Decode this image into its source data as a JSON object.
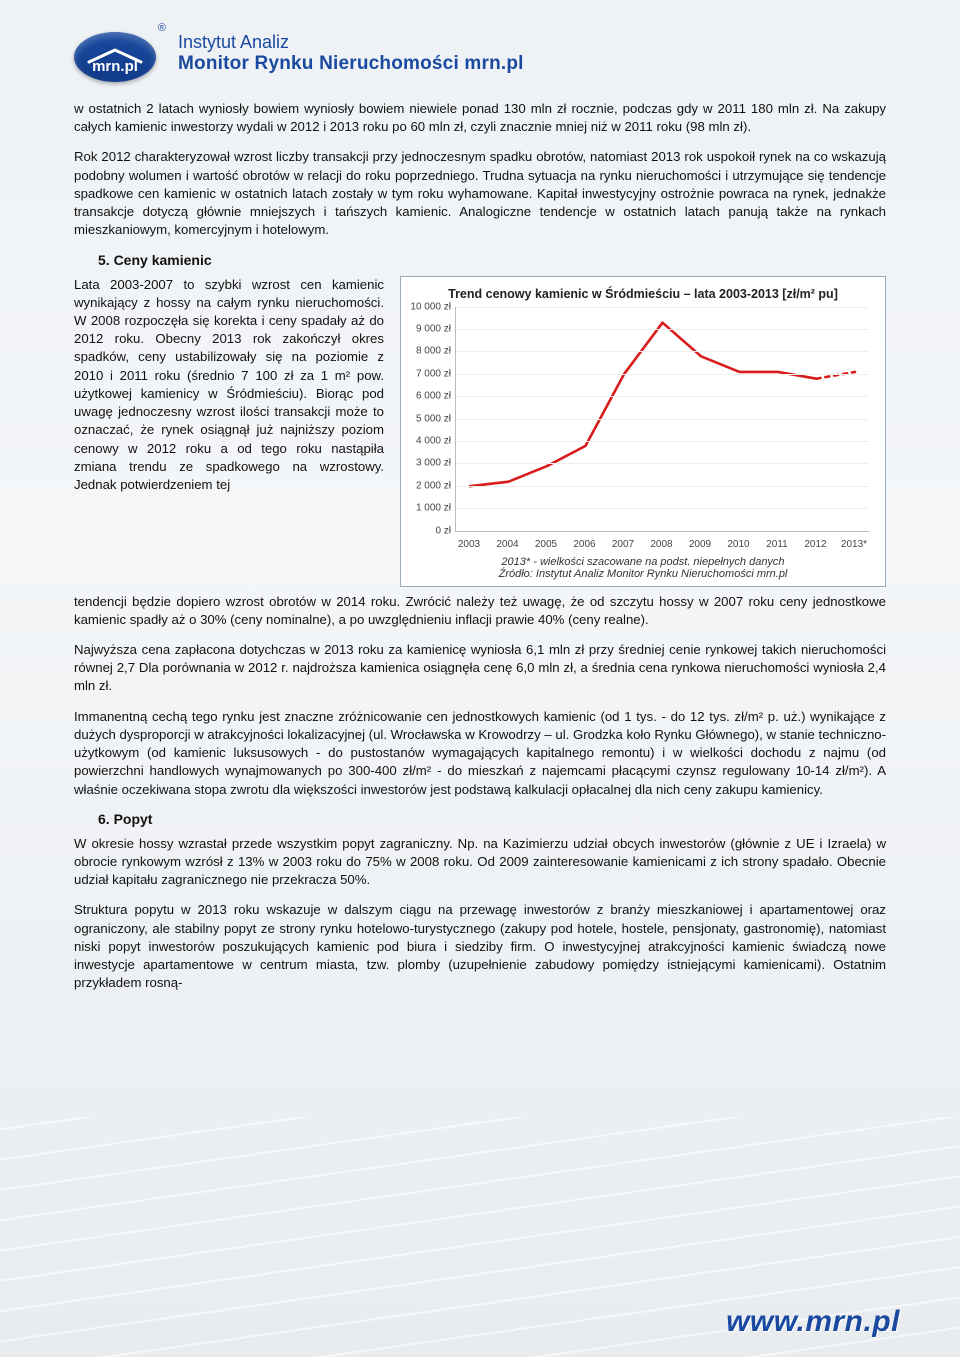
{
  "header": {
    "logo_text": "mrn.pl",
    "reg": "®",
    "line1": "Instytut Analiz",
    "line2": "Monitor Rynku Nieruchomości mrn.pl"
  },
  "paragraphs": {
    "p1": "w ostatnich 2 latach wyniosły bowiem wyniosły bowiem niewiele ponad 130 mln zł rocznie, podczas gdy w 2011 180 mln zł. Na zakupy całych kamienic inwestorzy wydali w 2012 i 2013 roku po 60 mln zł, czyli znacznie mniej niż w 2011 roku (98 mln zł).",
    "p2": "Rok 2012 charakteryzował wzrost liczby transakcji przy jednoczesnym spadku obrotów, natomiast 2013 rok uspokoił rynek na co wskazują podobny wolumen i wartość obrotów w relacji do roku poprzedniego. Trudna sytuacja na rynku nieruchomości i utrzymujące się tendencje spadkowe cen kamienic w ostatnich latach zostały w tym roku wyhamowane. Kapitał inwestycyjny ostrożnie powraca na rynek, jednakże transakcje dotyczą głównie mniejszych i tańszych kamienic. Analogiczne tendencje w ostatnich latach panują także na rynkach mieszkaniowym, komercyjnym i hotelowym.",
    "h5": "5.  Ceny kamienic",
    "p3": "Lata 2003-2007 to szybki wzrost cen kamienic wynikający z hossy na całym rynku nieruchomości. W 2008 rozpoczęła się korekta i ceny spadały aż do 2012 roku. Obecny 2013 rok zakończył okres spadków, ceny ustabilizowały się na poziomie z 2010 i 2011 roku (średnio 7 100 zł za 1 m² pow. użytkowej kamienicy w Śródmieściu). Biorąc pod uwagę jednoczesny wzrost ilości transakcji może to oznaczać, że rynek osiągnął już najniższy poziom cenowy w 2012 roku a od tego roku nastąpiła zmiana trendu ze spadkowego na wzrostowy. Jednak potwierdzeniem tej",
    "p4": "tendencji będzie dopiero wzrost obrotów w 2014 roku. Zwrócić należy też uwagę, że od szczytu hossy w 2007 roku ceny jednostkowe kamienic spadły aż o 30% (ceny nominalne), a po uwzględnieniu inflacji prawie 40% (ceny realne).",
    "p5": "Najwyższa cena zapłacona dotychczas w 2013 roku za kamienicę wyniosła 6,1 mln zł przy średniej cenie rynkowej takich nieruchomości równej 2,7 Dla porównania w 2012 r. najdroższa kamienica osiągnęła cenę 6,0 mln zł, a średnia cena rynkowa nieruchomości wyniosła 2,4 mln zł.",
    "p6": "Immanentną cechą tego rynku jest znaczne zróżnicowanie cen jednostkowych kamienic (od 1 tys. - do 12 tys. zł/m² p. uż.) wynikające z dużych dysproporcji w atrakcyjności lokalizacyjnej (ul. Wrocławska w Krowodrzy – ul. Grodzka koło Rynku Głównego), w stanie techniczno-użytkowym (od kamienic luksusowych - do pustostanów wymagających kapitalnego remontu) i w wielkości dochodu z najmu (od powierzchni handlowych wynajmowanych po 300-400 zł/m² - do mieszkań z najemcami płacącymi czynsz regulowany 10-14 zł/m²). A właśnie oczekiwana stopa zwrotu dla większości inwestorów jest podstawą kalkulacji opłacalnej dla nich ceny zakupu kamienicy.",
    "h6": "6.  Popyt",
    "p7": "W okresie hossy wzrastał przede wszystkim popyt zagraniczny. Np. na Kazimierzu udział obcych inwestorów (głównie z UE i Izraela) w obrocie rynkowym wzrósł z 13% w 2003 roku do 75% w 2008 roku. Od 2009 zainteresowanie kamienicami z ich strony spadało. Obecnie udział kapitału zagranicznego nie przekracza 50%.",
    "p8": "Struktura popytu w 2013 roku wskazuje w dalszym ciągu na przewagę inwestorów z branży mieszkaniowej i apartamentowej oraz ograniczony, ale stabilny popyt ze strony rynku hotelowo-turystycznego (zakupy pod hotele, hostele, pensjonaty, gastronomię), natomiast niski popyt inwestorów poszukujących kamienic pod biura i siedziby firm. O inwestycyjnej atrakcyjności kamienic świadczą nowe inwestycje apartamentowe w centrum miasta, tzw. plomby (uzupełnienie zabudowy pomiędzy istniejącymi kamienicami). Ostatnim przykładem rosną-"
  },
  "chart": {
    "title": "Trend cenowy kamienic w Śródmieściu – lata 2003-2013 [zł/m² pu]",
    "caption": "2013* - wielkości szacowane na podst. niepełnych danych",
    "source": "Źródło: Instytut Analiz Monitor Rynku Nieruchomości mrn.pl",
    "type": "line",
    "ylim": [
      0,
      10000
    ],
    "ytick_step": 1000,
    "ytick_labels": [
      "0 zł",
      "1 000 zł",
      "2 000 zł",
      "3 000 zł",
      "4 000 zł",
      "5 000 zł",
      "6 000 zł",
      "7 000 zł",
      "8 000 zł",
      "9 000 zł",
      "10 000 zł"
    ],
    "xlabels": [
      "2003",
      "2004",
      "2005",
      "2006",
      "2007",
      "2008",
      "2009",
      "2010",
      "2011",
      "2012",
      "2013*"
    ],
    "values": [
      2000,
      2200,
      2900,
      3800,
      7000,
      9300,
      7800,
      7100,
      7100,
      6800,
      7100
    ],
    "line_color": "#d81b1b",
    "line_width": 2.6,
    "dash_last_seg": true,
    "grid_color": "#eeeeee",
    "axis_color": "#bbbbbb",
    "bg": "#ffffff"
  },
  "footer": {
    "url": "www.mrn.pl"
  }
}
